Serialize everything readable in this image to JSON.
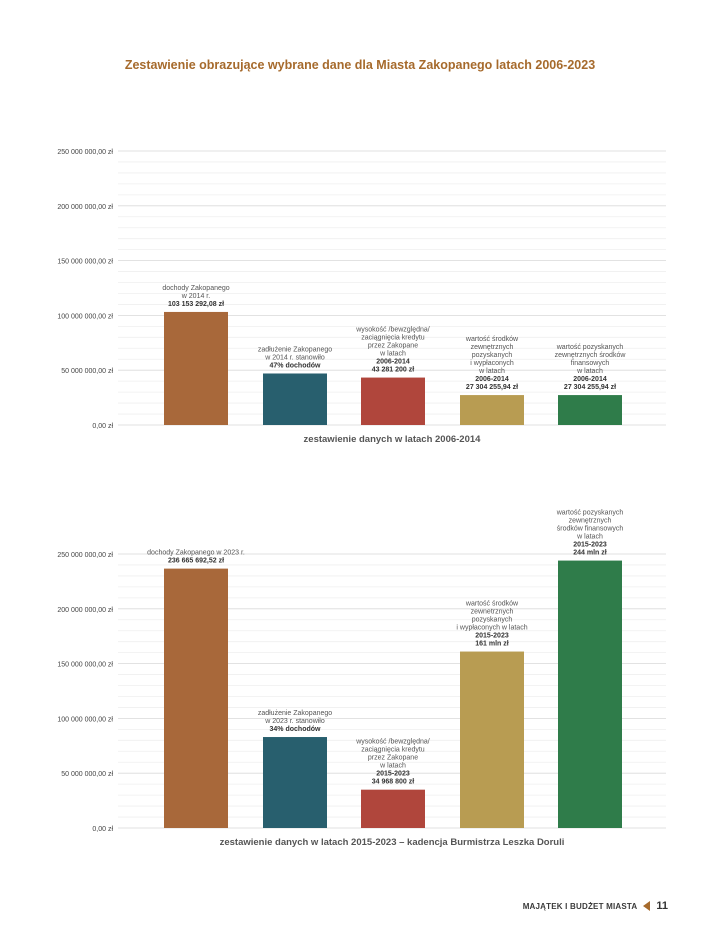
{
  "page_title": "Zestawienie obrazujące wybrane dane dla Miasta Zakopanego latach 2006-2023",
  "footer": {
    "section": "MAJĄTEK I BUDŻET MIASTA",
    "page_number": "11"
  },
  "colors": {
    "accent": "#a66a2c",
    "bar1": "#a8683a",
    "bar2": "#285f6e",
    "bar3": "#b0463c",
    "bar4": "#b89c52",
    "bar5": "#2f7c4a"
  },
  "chart_data": [
    {
      "type": "bar",
      "title": "zestawienie danych w latach 2006-2014",
      "ylim": [
        0,
        250000000
      ],
      "yticks": [
        "0,00 zł",
        "50 000 000,00 zł",
        "100 000 000,00 zł",
        "150 000 000,00 zł",
        "200 000 000,00 zł",
        "250 000 000,00 zł"
      ],
      "grid": true,
      "values": [
        103153292.08,
        47000000,
        43281200,
        27304255.94,
        27304255.94
      ],
      "bar_labels": [
        [
          "dochody Zakopanego",
          "w 2014 r.",
          "103 153 292,08 zł"
        ],
        [
          "zadłużenie Zakopanego",
          "w  2014 r. stanowiło",
          "47% dochodów"
        ],
        [
          "wysokość /bewzględna/",
          "zaciągnięcia  kredytu",
          "przez Zakopane",
          "w latach",
          "2006-2014",
          "43 281 200 zł"
        ],
        [
          "wartość środków",
          "zewnętrznych",
          "pozyskanych",
          "i wypłaconych",
          "w latach",
          "2006-2014",
          "27 304 255,94 zł"
        ],
        [
          "wartość pozyskanych",
          "zewnętrznych środków",
          "finansowych",
          "w latach",
          "2006-2014",
          "27 304 255,94 zł"
        ]
      ]
    },
    {
      "type": "bar",
      "title": "zestawienie danych w latach 2015-2023 – kadencja Burmistrza Leszka Doruli",
      "ylim": [
        0,
        250000000
      ],
      "yticks": [
        "0,00 zł",
        "50 000 000,00 zł",
        "100 000 000,00 zł",
        "150 000 000,00 zł",
        "200 000 000,00 zł",
        "250 000 000,00 zł"
      ],
      "grid": true,
      "values": [
        236665692.52,
        83000000,
        34968800,
        161000000,
        244000000
      ],
      "bar_labels": [
        [
          "dochody Zakopanego w 2023 r.",
          "236 665 692,52 zł"
        ],
        [
          "zadłużenie Zakopanego",
          "w 2023 r. stanowiło",
          "34% dochodów"
        ],
        [
          "wysokość /bewzględna/",
          "zaciągnięcia kredytu",
          "przez Zakopane",
          "w latach",
          "2015-2023",
          "34 968 800 zł"
        ],
        [
          "wartość środków",
          "zewnetrznych",
          "pozyskanych",
          "i wypłaconych w latach",
          "2015-2023",
          "161 mln zł"
        ],
        [
          "wartość pozyskanych",
          "zewnętrznych",
          "środków finansowych",
          "w latach",
          "2015-2023",
          "244 mln zł"
        ]
      ]
    }
  ]
}
